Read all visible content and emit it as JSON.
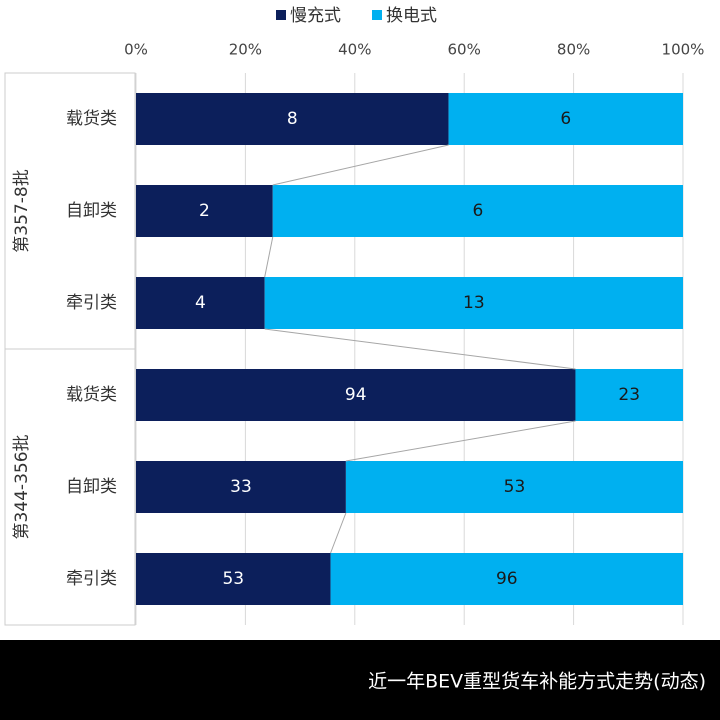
{
  "chart_data": {
    "type": "bar",
    "orientation": "horizontal",
    "stacking": "percent",
    "footer": "近一年BEV重型货车补能方式走势(动态)",
    "groups": [
      {
        "name": "第357-8批",
        "categories": [
          "载货类",
          "自卸类",
          "牵引类"
        ]
      },
      {
        "name": "第344-356批",
        "categories": [
          "载货类",
          "自卸类",
          "牵引类"
        ]
      }
    ],
    "series": [
      {
        "name": "慢充式",
        "color": "#0c1f5b",
        "label_color": "#ffffff",
        "values": [
          8,
          2,
          4,
          94,
          33,
          53
        ]
      },
      {
        "name": "换电式",
        "color": "#00b0f0",
        "label_color": "#1a1a1a",
        "values": [
          6,
          6,
          13,
          23,
          53,
          96
        ]
      }
    ],
    "xlim": [
      0,
      100
    ],
    "xticks": [
      {
        "value": 0,
        "label": "0%"
      },
      {
        "value": 20,
        "label": "20%"
      },
      {
        "value": 40,
        "label": "40%"
      },
      {
        "value": 60,
        "label": "60%"
      },
      {
        "value": 80,
        "label": "80%"
      },
      {
        "value": 100,
        "label": "100%"
      }
    ],
    "grid": true,
    "series_lines": true,
    "legend": "top"
  }
}
